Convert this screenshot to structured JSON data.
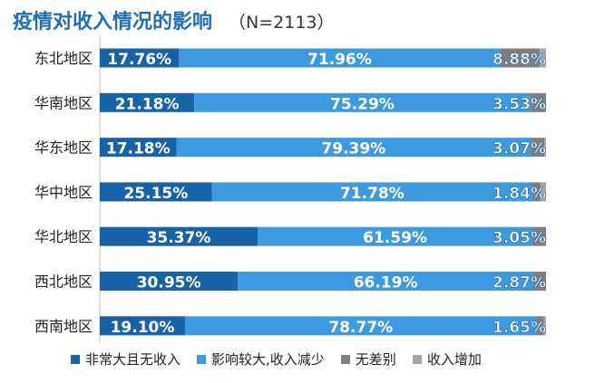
{
  "title": "疫情对收入情况的影响",
  "subtitle": "（N=2113）",
  "chart_data": {
    "type": "bar",
    "orientation": "horizontal",
    "stacked": true,
    "title": "疫情对收入情况的影响",
    "subtitle": "（N=2113）",
    "categories": [
      "东北地区",
      "华南地区",
      "华东地区",
      "华中地区",
      "华北地区",
      "西北地区",
      "西南地区"
    ],
    "series": [
      {
        "name": "非常大且无收入",
        "color": "#1863a8",
        "values": [
          17.76,
          21.18,
          17.18,
          25.15,
          35.37,
          30.95,
          19.1
        ],
        "labels": [
          "17.76%",
          "21.18%",
          "17.18%",
          "25.15%",
          "35.37%",
          "30.95%",
          "19.10%"
        ]
      },
      {
        "name": "影响较大,收入减少",
        "color": "#3d9ae0",
        "values": [
          71.96,
          75.29,
          79.39,
          71.78,
          61.59,
          66.19,
          78.77
        ],
        "labels": [
          "71.96%",
          "75.29%",
          "79.39%",
          "71.78%",
          "61.59%",
          "66.19%",
          "78.77%"
        ]
      },
      {
        "name": "无差别",
        "color": "#7f7f7f",
        "values": [
          8.88,
          3.53,
          3.07,
          1.84,
          3.05,
          2.87,
          1.65
        ],
        "labels": [
          "8.88%",
          "3.53%",
          "3.07%",
          "1.84%",
          "3.05%",
          "2.87%",
          "1.65%"
        ]
      },
      {
        "name": "收入增加",
        "color": "#a6a6a6",
        "values": [
          1.4,
          0.0,
          0.36,
          1.23,
          0.0,
          0.0,
          0.48
        ],
        "labels": []
      }
    ],
    "xlim": [
      0,
      100
    ],
    "grid": false,
    "legend": "bottom"
  }
}
